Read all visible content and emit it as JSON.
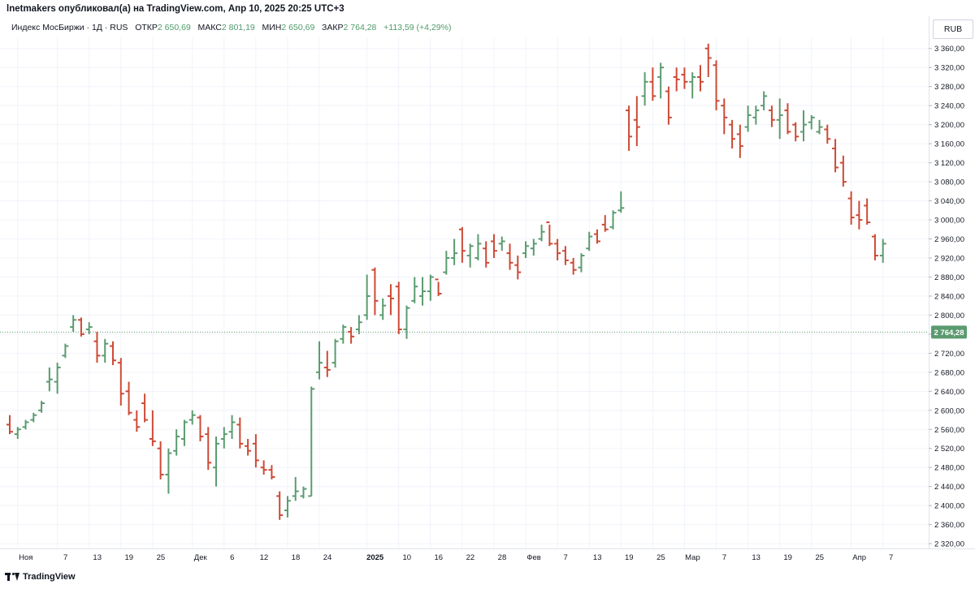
{
  "publisher": "lnetmakers опубликовал(а) на TradingView.com, Апр 10, 2025 20:25 UTC+3",
  "legend": {
    "symbol": "Индекс МосБиржи · 1Д · RUS",
    "open_label": "ОТКР",
    "open": "2 650,69",
    "high_label": "МАКС",
    "high": "2 801,19",
    "low_label": "МИН",
    "low": "2 650,69",
    "close_label": "ЗАКР",
    "close": "2 764,28",
    "change": "+113,59 (+4,29%)"
  },
  "currency": "RUB",
  "footer": {
    "brand": "TradingView"
  },
  "colors": {
    "up": "#5b9b70",
    "down": "#cd4a35",
    "grid": "#f0f3fa",
    "last_price_bg": "#5b9b70"
  },
  "chart_data": {
    "type": "ohlc",
    "ylim": [
      2310,
      3380
    ],
    "y_ticks": [
      "2 320,00",
      "2 360,00",
      "2 400,00",
      "2 440,00",
      "2 480,00",
      "2 520,00",
      "2 560,00",
      "2 600,00",
      "2 640,00",
      "2 680,00",
      "2 720,00",
      "2 760,00",
      "2 800,00",
      "2 840,00",
      "2 880,00",
      "2 920,00",
      "2 960,00",
      "3 000,00",
      "3 040,00",
      "3 080,00",
      "3 120,00",
      "3 160,00",
      "3 200,00",
      "3 240,00",
      "3 280,00",
      "3 320,00",
      "3 360,00"
    ],
    "x_ticks": [
      {
        "label": "Ноя",
        "bar": 1
      },
      {
        "label": "7",
        "bar": 6
      },
      {
        "label": "13",
        "bar": 10
      },
      {
        "label": "19",
        "bar": 14
      },
      {
        "label": "25",
        "bar": 18
      },
      {
        "label": "Дек",
        "bar": 23
      },
      {
        "label": "6",
        "bar": 27
      },
      {
        "label": "12",
        "bar": 31
      },
      {
        "label": "18",
        "bar": 35
      },
      {
        "label": "24",
        "bar": 39
      },
      {
        "label": "2025",
        "bar": 45
      },
      {
        "label": "10",
        "bar": 49
      },
      {
        "label": "16",
        "bar": 53
      },
      {
        "label": "22",
        "bar": 57
      },
      {
        "label": "28",
        "bar": 61
      },
      {
        "label": "Фев",
        "bar": 65
      },
      {
        "label": "7",
        "bar": 69
      },
      {
        "label": "13",
        "bar": 73
      },
      {
        "label": "19",
        "bar": 77
      },
      {
        "label": "25",
        "bar": 81
      },
      {
        "label": "Мар",
        "bar": 85
      },
      {
        "label": "7",
        "bar": 89
      },
      {
        "label": "13",
        "bar": 93
      },
      {
        "label": "19",
        "bar": 97
      },
      {
        "label": "25",
        "bar": 101
      },
      {
        "label": "Апр",
        "bar": 106
      },
      {
        "label": "7",
        "bar": 110
      }
    ],
    "last_price": {
      "value": 2764.28,
      "label": "2 764,28"
    },
    "bars": [
      [
        2570,
        2590,
        2550,
        2555
      ],
      [
        2550,
        2565,
        2540,
        2560
      ],
      [
        2565,
        2580,
        2560,
        2575
      ],
      [
        2580,
        2595,
        2575,
        2590
      ],
      [
        2600,
        2620,
        2595,
        2615
      ],
      [
        2660,
        2690,
        2640,
        2665
      ],
      [
        2660,
        2700,
        2635,
        2690
      ],
      [
        2715,
        2740,
        2710,
        2735
      ],
      [
        2775,
        2800,
        2765,
        2790
      ],
      [
        2790,
        2795,
        2755,
        2760
      ],
      [
        2770,
        2785,
        2760,
        2775
      ],
      [
        2745,
        2765,
        2700,
        2715
      ],
      [
        2715,
        2750,
        2700,
        2740
      ],
      [
        2735,
        2745,
        2695,
        2705
      ],
      [
        2700,
        2710,
        2610,
        2635
      ],
      [
        2640,
        2660,
        2590,
        2595
      ],
      [
        2580,
        2600,
        2555,
        2565
      ],
      [
        2615,
        2635,
        2575,
        2580
      ],
      [
        2540,
        2600,
        2525,
        2535
      ],
      [
        2520,
        2535,
        2455,
        2465
      ],
      [
        2465,
        2520,
        2425,
        2510
      ],
      [
        2515,
        2560,
        2505,
        2545
      ],
      [
        2540,
        2580,
        2525,
        2575
      ],
      [
        2580,
        2600,
        2570,
        2590
      ],
      [
        2585,
        2590,
        2535,
        2545
      ],
      [
        2550,
        2565,
        2475,
        2490
      ],
      [
        2480,
        2545,
        2440,
        2530
      ],
      [
        2540,
        2565,
        2520,
        2550
      ],
      [
        2555,
        2590,
        2540,
        2575
      ],
      [
        2570,
        2585,
        2520,
        2530
      ],
      [
        2525,
        2540,
        2505,
        2515
      ],
      [
        2530,
        2550,
        2480,
        2495
      ],
      [
        2480,
        2495,
        2465,
        2475
      ],
      [
        2475,
        2485,
        2455,
        2460
      ],
      [
        2420,
        2430,
        2370,
        2380
      ],
      [
        2390,
        2420,
        2375,
        2410
      ],
      [
        2420,
        2460,
        2410,
        2430
      ],
      [
        2420,
        2440,
        2415,
        2435
      ],
      [
        2420,
        2650,
        2420,
        2645
      ],
      [
        2680,
        2745,
        2665,
        2700
      ],
      [
        2690,
        2725,
        2670,
        2685
      ],
      [
        2700,
        2750,
        2690,
        2745
      ],
      [
        2750,
        2780,
        2740,
        2775
      ],
      [
        2765,
        2775,
        2740,
        2755
      ],
      [
        2770,
        2800,
        2760,
        2785
      ],
      [
        2800,
        2885,
        2790,
        2840
      ],
      [
        2895,
        2900,
        2800,
        2830
      ],
      [
        2800,
        2835,
        2790,
        2820
      ],
      [
        2840,
        2865,
        2800,
        2835
      ],
      [
        2860,
        2870,
        2760,
        2770
      ],
      [
        2770,
        2820,
        2750,
        2815
      ],
      [
        2830,
        2880,
        2825,
        2860
      ],
      [
        2840,
        2880,
        2820,
        2850
      ],
      [
        2850,
        2885,
        2830,
        2880
      ],
      [
        2875,
        2870,
        2840,
        2845
      ],
      [
        2890,
        2935,
        2885,
        2920
      ],
      [
        2920,
        2960,
        2905,
        2930
      ],
      [
        2980,
        2985,
        2910,
        2935
      ],
      [
        2925,
        2950,
        2900,
        2945
      ],
      [
        2920,
        2970,
        2915,
        2950
      ],
      [
        2940,
        2955,
        2900,
        2910
      ],
      [
        2955,
        2970,
        2920,
        2935
      ],
      [
        2950,
        2965,
        2935,
        2955
      ],
      [
        2930,
        2950,
        2895,
        2910
      ],
      [
        2905,
        2925,
        2875,
        2890
      ],
      [
        2930,
        2955,
        2920,
        2945
      ],
      [
        2940,
        2960,
        2925,
        2950
      ],
      [
        2960,
        2990,
        2955,
        2975
      ],
      [
        2995,
        2990,
        2945,
        2950
      ],
      [
        2950,
        2960,
        2915,
        2930
      ],
      [
        2935,
        2945,
        2905,
        2915
      ],
      [
        2910,
        2920,
        2885,
        2895
      ],
      [
        2900,
        2930,
        2890,
        2925
      ],
      [
        2940,
        2975,
        2935,
        2965
      ],
      [
        2970,
        2980,
        2950,
        2955
      ],
      [
        2990,
        3010,
        2975,
        2980
      ],
      [
        2985,
        3020,
        2980,
        3015
      ],
      [
        3020,
        3060,
        3015,
        3025
      ],
      [
        3230,
        3240,
        3145,
        3175
      ],
      [
        3210,
        3260,
        3155,
        3195
      ],
      [
        3260,
        3310,
        3240,
        3290
      ],
      [
        3290,
        3320,
        3250,
        3260
      ],
      [
        3300,
        3330,
        3255,
        3320
      ],
      [
        3270,
        3280,
        3200,
        3215
      ],
      [
        3300,
        3320,
        3270,
        3295
      ],
      [
        3305,
        3320,
        3275,
        3290
      ],
      [
        3290,
        3310,
        3255,
        3300
      ],
      [
        3300,
        3325,
        3270,
        3290
      ],
      [
        3360,
        3370,
        3300,
        3340
      ],
      [
        3325,
        3335,
        3230,
        3250
      ],
      [
        3240,
        3255,
        3180,
        3215
      ],
      [
        3200,
        3210,
        3150,
        3170
      ],
      [
        3180,
        3200,
        3130,
        3155
      ],
      [
        3195,
        3240,
        3185,
        3220
      ],
      [
        3215,
        3240,
        3200,
        3230
      ],
      [
        3240,
        3270,
        3230,
        3260
      ],
      [
        3230,
        3240,
        3195,
        3210
      ],
      [
        3210,
        3255,
        3170,
        3220
      ],
      [
        3230,
        3245,
        3180,
        3185
      ],
      [
        3200,
        3205,
        3165,
        3175
      ],
      [
        3185,
        3230,
        3165,
        3200
      ],
      [
        3205,
        3220,
        3190,
        3215
      ],
      [
        3185,
        3210,
        3180,
        3195
      ],
      [
        3190,
        3200,
        3160,
        3170
      ],
      [
        3150,
        3170,
        3100,
        3110
      ],
      [
        3120,
        3135,
        3070,
        3080
      ],
      [
        3045,
        3060,
        2990,
        3005
      ],
      [
        3010,
        3040,
        2980,
        3000
      ],
      [
        3030,
        3045,
        2990,
        2995
      ],
      [
        2965,
        2970,
        2915,
        2925
      ],
      [
        2925,
        2960,
        2910,
        2950
      ]
    ]
  }
}
